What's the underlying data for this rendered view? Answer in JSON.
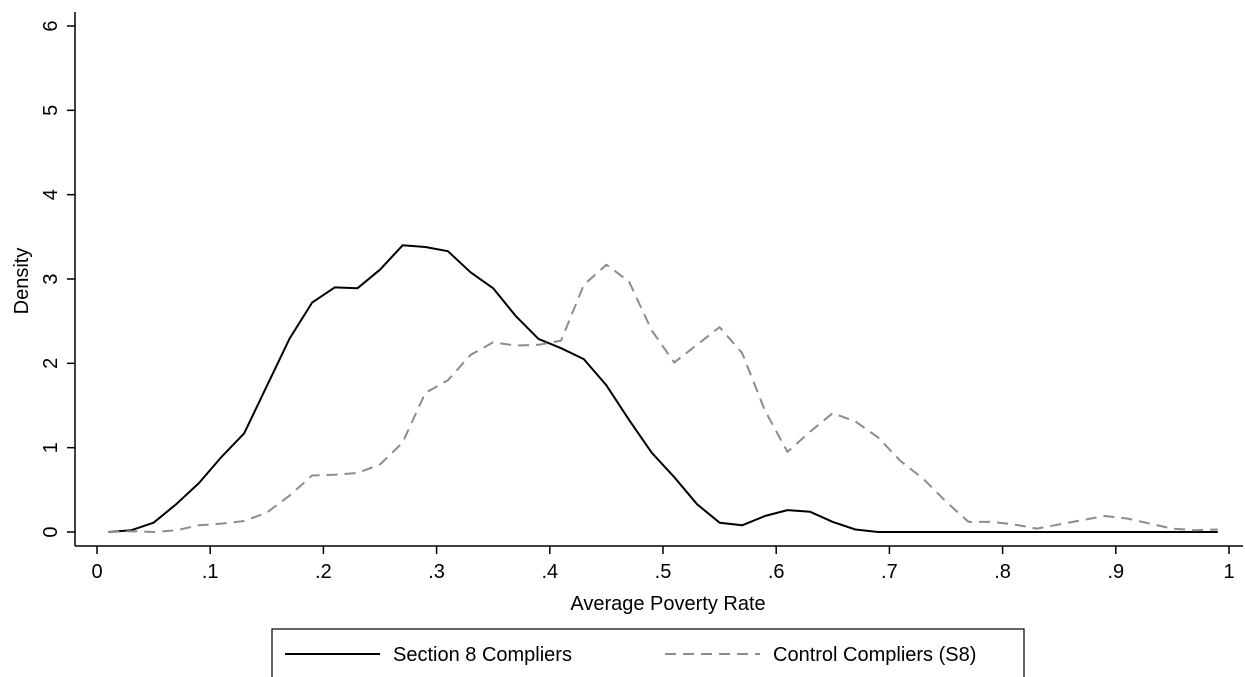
{
  "chart_data": {
    "type": "line",
    "title": "",
    "xlabel": "Average Poverty Rate",
    "ylabel": "Density",
    "xlim": [
      0,
      1
    ],
    "ylim": [
      0,
      6
    ],
    "x_ticks": [
      0,
      0.1,
      0.2,
      0.3,
      0.4,
      0.5,
      0.6,
      0.7,
      0.8,
      0.9,
      1
    ],
    "x_tick_labels": [
      "0",
      ".1",
      ".2",
      ".3",
      ".4",
      ".5",
      ".6",
      ".7",
      ".8",
      ".9",
      "1"
    ],
    "y_ticks": [
      0,
      1,
      2,
      3,
      4,
      5,
      6
    ],
    "y_tick_labels": [
      "0",
      "1",
      "2",
      "3",
      "4",
      "5",
      "6"
    ],
    "grid": false,
    "legend_position": "bottom",
    "series": [
      {
        "name": "Section 8 Compliers",
        "color": "#000000",
        "style": "solid",
        "points": [
          [
            0.01,
            0
          ],
          [
            0.03,
            0.02
          ],
          [
            0.05,
            0.11
          ],
          [
            0.07,
            0.33
          ],
          [
            0.09,
            0.58
          ],
          [
            0.11,
            0.89
          ],
          [
            0.13,
            1.17
          ],
          [
            0.15,
            1.73
          ],
          [
            0.17,
            2.29
          ],
          [
            0.19,
            2.72
          ],
          [
            0.21,
            2.9
          ],
          [
            0.23,
            2.89
          ],
          [
            0.25,
            3.11
          ],
          [
            0.27,
            3.4
          ],
          [
            0.29,
            3.38
          ],
          [
            0.31,
            3.33
          ],
          [
            0.33,
            3.08
          ],
          [
            0.35,
            2.89
          ],
          [
            0.37,
            2.56
          ],
          [
            0.39,
            2.29
          ],
          [
            0.41,
            2.18
          ],
          [
            0.43,
            2.05
          ],
          [
            0.45,
            1.74
          ],
          [
            0.47,
            1.33
          ],
          [
            0.49,
            0.94
          ],
          [
            0.51,
            0.65
          ],
          [
            0.53,
            0.33
          ],
          [
            0.55,
            0.11
          ],
          [
            0.57,
            0.08
          ],
          [
            0.59,
            0.19
          ],
          [
            0.61,
            0.26
          ],
          [
            0.63,
            0.24
          ],
          [
            0.65,
            0.12
          ],
          [
            0.67,
            0.03
          ],
          [
            0.69,
            0
          ],
          [
            0.71,
            0
          ],
          [
            0.75,
            0
          ],
          [
            0.8,
            0
          ],
          [
            0.85,
            0
          ],
          [
            0.9,
            0
          ],
          [
            0.95,
            0
          ],
          [
            0.99,
            0
          ]
        ]
      },
      {
        "name": "Control Compliers (S8)",
        "color": "#8c8c8c",
        "style": "dashed",
        "points": [
          [
            0.01,
            0
          ],
          [
            0.03,
            0.01
          ],
          [
            0.05,
            0
          ],
          [
            0.07,
            0.02
          ],
          [
            0.09,
            0.08
          ],
          [
            0.11,
            0.1
          ],
          [
            0.13,
            0.13
          ],
          [
            0.15,
            0.23
          ],
          [
            0.17,
            0.43
          ],
          [
            0.19,
            0.67
          ],
          [
            0.21,
            0.68
          ],
          [
            0.23,
            0.7
          ],
          [
            0.25,
            0.8
          ],
          [
            0.27,
            1.06
          ],
          [
            0.29,
            1.65
          ],
          [
            0.31,
            1.8
          ],
          [
            0.33,
            2.1
          ],
          [
            0.35,
            2.25
          ],
          [
            0.37,
            2.21
          ],
          [
            0.39,
            2.22
          ],
          [
            0.41,
            2.27
          ],
          [
            0.43,
            2.93
          ],
          [
            0.45,
            3.17
          ],
          [
            0.47,
            2.97
          ],
          [
            0.49,
            2.39
          ],
          [
            0.51,
            2.01
          ],
          [
            0.53,
            2.22
          ],
          [
            0.55,
            2.43
          ],
          [
            0.57,
            2.12
          ],
          [
            0.59,
            1.44
          ],
          [
            0.61,
            0.95
          ],
          [
            0.63,
            1.19
          ],
          [
            0.65,
            1.41
          ],
          [
            0.67,
            1.31
          ],
          [
            0.69,
            1.12
          ],
          [
            0.71,
            0.84
          ],
          [
            0.73,
            0.63
          ],
          [
            0.75,
            0.36
          ],
          [
            0.77,
            0.12
          ],
          [
            0.79,
            0.12
          ],
          [
            0.81,
            0.09
          ],
          [
            0.83,
            0.04
          ],
          [
            0.85,
            0.09
          ],
          [
            0.87,
            0.14
          ],
          [
            0.89,
            0.19
          ],
          [
            0.91,
            0.16
          ],
          [
            0.93,
            0.1
          ],
          [
            0.95,
            0.04
          ],
          [
            0.97,
            0.02
          ],
          [
            0.99,
            0.03
          ]
        ]
      }
    ]
  }
}
